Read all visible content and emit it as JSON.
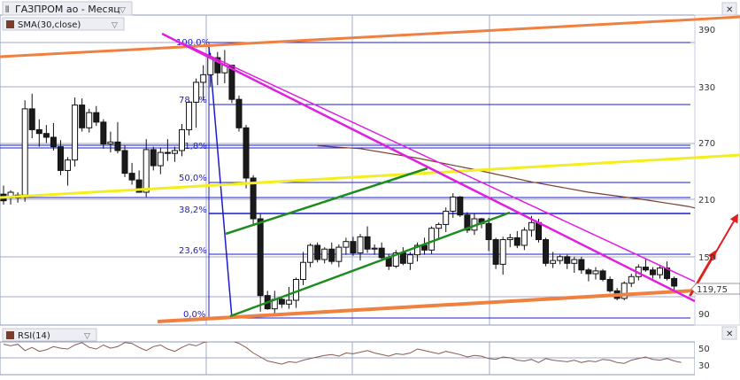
{
  "header": {
    "title": "ГАЗПРОМ ао - Месяц",
    "indicator_label": "SMA(30,close)",
    "close_symbol": "✕"
  },
  "price_axis": {
    "ticks": [
      "390",
      "330",
      "270",
      "210",
      "150",
      "90"
    ]
  },
  "fibonacci_levels": [
    "100,0%",
    "78,6%",
    "61,8%",
    "50,0%",
    "38,2%",
    "23,6%",
    "0,0%"
  ],
  "last_price": "119,75",
  "rsi": {
    "label": "RSI(14)",
    "ticks": [
      "50",
      "30"
    ]
  },
  "colors": {
    "candle_fill": "#1a1a1a",
    "grid": "#a0aac8",
    "sma": "#7a3e2a",
    "fib": "#1c1ccc",
    "channel_orange": "#f08040",
    "channel_yellow": "#f4ee20",
    "channel_green": "#1e8c1e",
    "trend_magenta": "#e020e0",
    "arrow": "#e02020",
    "rsi_line": "#8a5a52"
  },
  "chart_data": {
    "type": "candlestick",
    "title": "ГАЗПРОМ ао - Месяц",
    "ylim": [
      80,
      405
    ],
    "overlay": "SMA(30,close)",
    "candles": [
      {
        "o": 216,
        "h": 225,
        "l": 205,
        "c": 209
      },
      {
        "o": 212,
        "h": 220,
        "l": 205,
        "c": 218
      },
      {
        "o": 212,
        "h": 218,
        "l": 207,
        "c": 215
      },
      {
        "o": 215,
        "h": 315,
        "l": 208,
        "c": 306
      },
      {
        "o": 306,
        "h": 322,
        "l": 275,
        "c": 284
      },
      {
        "o": 284,
        "h": 295,
        "l": 266,
        "c": 280
      },
      {
        "o": 280,
        "h": 289,
        "l": 270,
        "c": 276
      },
      {
        "o": 276,
        "h": 291,
        "l": 262,
        "c": 266
      },
      {
        "o": 266,
        "h": 273,
        "l": 236,
        "c": 241
      },
      {
        "o": 241,
        "h": 255,
        "l": 225,
        "c": 252
      },
      {
        "o": 252,
        "h": 318,
        "l": 245,
        "c": 310
      },
      {
        "o": 310,
        "h": 317,
        "l": 282,
        "c": 286
      },
      {
        "o": 286,
        "h": 306,
        "l": 281,
        "c": 302
      },
      {
        "o": 302,
        "h": 309,
        "l": 288,
        "c": 292
      },
      {
        "o": 292,
        "h": 295,
        "l": 264,
        "c": 269
      },
      {
        "o": 269,
        "h": 282,
        "l": 260,
        "c": 271
      },
      {
        "o": 271,
        "h": 292,
        "l": 259,
        "c": 262
      },
      {
        "o": 262,
        "h": 268,
        "l": 234,
        "c": 238
      },
      {
        "o": 238,
        "h": 249,
        "l": 226,
        "c": 231
      },
      {
        "o": 231,
        "h": 241,
        "l": 220,
        "c": 218
      },
      {
        "o": 218,
        "h": 274,
        "l": 213,
        "c": 263
      },
      {
        "o": 263,
        "h": 266,
        "l": 241,
        "c": 246
      },
      {
        "o": 246,
        "h": 265,
        "l": 237,
        "c": 260
      },
      {
        "o": 260,
        "h": 274,
        "l": 251,
        "c": 259
      },
      {
        "o": 259,
        "h": 266,
        "l": 250,
        "c": 262
      },
      {
        "o": 262,
        "h": 290,
        "l": 256,
        "c": 284
      },
      {
        "o": 284,
        "h": 315,
        "l": 278,
        "c": 313
      },
      {
        "o": 313,
        "h": 338,
        "l": 286,
        "c": 334
      },
      {
        "o": 334,
        "h": 352,
        "l": 315,
        "c": 342
      },
      {
        "o": 342,
        "h": 365,
        "l": 329,
        "c": 360
      },
      {
        "o": 360,
        "h": 366,
        "l": 331,
        "c": 344
      },
      {
        "o": 344,
        "h": 368,
        "l": 333,
        "c": 352
      },
      {
        "o": 352,
        "h": 350,
        "l": 312,
        "c": 316
      },
      {
        "o": 316,
        "h": 320,
        "l": 282,
        "c": 286
      },
      {
        "o": 286,
        "h": 289,
        "l": 222,
        "c": 233
      },
      {
        "o": 233,
        "h": 236,
        "l": 183,
        "c": 190
      },
      {
        "o": 190,
        "h": 195,
        "l": 92,
        "c": 109
      },
      {
        "o": 109,
        "h": 114,
        "l": 94,
        "c": 95
      },
      {
        "o": 95,
        "h": 114,
        "l": 90,
        "c": 105
      },
      {
        "o": 105,
        "h": 108,
        "l": 96,
        "c": 100
      },
      {
        "o": 100,
        "h": 118,
        "l": 95,
        "c": 104
      },
      {
        "o": 104,
        "h": 128,
        "l": 96,
        "c": 126
      },
      {
        "o": 126,
        "h": 155,
        "l": 120,
        "c": 144
      },
      {
        "o": 144,
        "h": 164,
        "l": 139,
        "c": 162
      },
      {
        "o": 162,
        "h": 165,
        "l": 144,
        "c": 147
      },
      {
        "o": 147,
        "h": 160,
        "l": 143,
        "c": 158
      },
      {
        "o": 158,
        "h": 165,
        "l": 142,
        "c": 145
      },
      {
        "o": 145,
        "h": 163,
        "l": 139,
        "c": 160
      },
      {
        "o": 160,
        "h": 170,
        "l": 152,
        "c": 166
      },
      {
        "o": 166,
        "h": 171,
        "l": 151,
        "c": 154
      },
      {
        "o": 154,
        "h": 174,
        "l": 146,
        "c": 171
      },
      {
        "o": 171,
        "h": 182,
        "l": 154,
        "c": 158
      },
      {
        "o": 158,
        "h": 163,
        "l": 152,
        "c": 159
      },
      {
        "o": 159,
        "h": 165,
        "l": 146,
        "c": 149
      },
      {
        "o": 149,
        "h": 153,
        "l": 136,
        "c": 140
      },
      {
        "o": 140,
        "h": 157,
        "l": 138,
        "c": 154
      },
      {
        "o": 154,
        "h": 160,
        "l": 141,
        "c": 143
      },
      {
        "o": 143,
        "h": 155,
        "l": 136,
        "c": 152
      },
      {
        "o": 152,
        "h": 165,
        "l": 145,
        "c": 162
      },
      {
        "o": 162,
        "h": 170,
        "l": 152,
        "c": 157
      },
      {
        "o": 157,
        "h": 182,
        "l": 153,
        "c": 180
      },
      {
        "o": 180,
        "h": 186,
        "l": 168,
        "c": 184
      },
      {
        "o": 184,
        "h": 202,
        "l": 176,
        "c": 198
      },
      {
        "o": 198,
        "h": 217,
        "l": 191,
        "c": 213
      },
      {
        "o": 213,
        "h": 214,
        "l": 192,
        "c": 194
      },
      {
        "o": 194,
        "h": 197,
        "l": 175,
        "c": 178
      },
      {
        "o": 178,
        "h": 196,
        "l": 173,
        "c": 190
      },
      {
        "o": 190,
        "h": 191,
        "l": 180,
        "c": 185
      },
      {
        "o": 185,
        "h": 191,
        "l": 156,
        "c": 168
      },
      {
        "o": 168,
        "h": 170,
        "l": 137,
        "c": 142
      },
      {
        "o": 142,
        "h": 171,
        "l": 131,
        "c": 168
      },
      {
        "o": 168,
        "h": 174,
        "l": 160,
        "c": 170
      },
      {
        "o": 170,
        "h": 177,
        "l": 159,
        "c": 162
      },
      {
        "o": 162,
        "h": 181,
        "l": 157,
        "c": 178
      },
      {
        "o": 178,
        "h": 193,
        "l": 171,
        "c": 186
      },
      {
        "o": 186,
        "h": 190,
        "l": 165,
        "c": 168
      },
      {
        "o": 168,
        "h": 170,
        "l": 140,
        "c": 143
      },
      {
        "o": 143,
        "h": 155,
        "l": 138,
        "c": 146
      },
      {
        "o": 146,
        "h": 152,
        "l": 142,
        "c": 150
      },
      {
        "o": 150,
        "h": 152,
        "l": 137,
        "c": 143
      },
      {
        "o": 143,
        "h": 150,
        "l": 133,
        "c": 147
      },
      {
        "o": 147,
        "h": 150,
        "l": 132,
        "c": 136
      },
      {
        "o": 136,
        "h": 138,
        "l": 124,
        "c": 132
      },
      {
        "o": 132,
        "h": 139,
        "l": 126,
        "c": 135
      },
      {
        "o": 135,
        "h": 137,
        "l": 124,
        "c": 126
      },
      {
        "o": 126,
        "h": 129,
        "l": 112,
        "c": 114
      },
      {
        "o": 114,
        "h": 117,
        "l": 104,
        "c": 106
      },
      {
        "o": 106,
        "h": 124,
        "l": 104,
        "c": 122
      },
      {
        "o": 122,
        "h": 132,
        "l": 118,
        "c": 129
      },
      {
        "o": 129,
        "h": 142,
        "l": 125,
        "c": 139
      },
      {
        "o": 139,
        "h": 148,
        "l": 134,
        "c": 136
      },
      {
        "o": 136,
        "h": 139,
        "l": 127,
        "c": 131
      },
      {
        "o": 131,
        "h": 140,
        "l": 127,
        "c": 138
      },
      {
        "o": 138,
        "h": 145,
        "l": 125,
        "c": 127
      },
      {
        "o": 127,
        "h": 129,
        "l": 114,
        "c": 119
      }
    ],
    "sma": [
      [
        44,
        267
      ],
      [
        50,
        264
      ],
      [
        58,
        254
      ],
      [
        66,
        242
      ],
      [
        74,
        229
      ],
      [
        82,
        218
      ],
      [
        90,
        210
      ],
      [
        96,
        203
      ],
      [
        101,
        194
      ],
      [
        107,
        183
      ],
      [
        113,
        176
      ],
      [
        119,
        170
      ],
      [
        124,
        162
      ],
      [
        129,
        155
      ],
      [
        134,
        147
      ],
      [
        138,
        143
      ],
      [
        140,
        138
      ],
      [
        141,
        139
      ]
    ],
    "fib_prices": [
      373,
      329,
      296,
      272,
      250,
      220,
      95
    ],
    "rsi_values": [
      56,
      54,
      56,
      48,
      52,
      47,
      49,
      53,
      51,
      50,
      55,
      58,
      52,
      50,
      55,
      51,
      53,
      58,
      57,
      52,
      48,
      53,
      55,
      50,
      47,
      52,
      56,
      54,
      58,
      60,
      62,
      62,
      60,
      57,
      52,
      45,
      40,
      35,
      33,
      31,
      34,
      33,
      36,
      38,
      40,
      42,
      43,
      41,
      45,
      44,
      46,
      48,
      45,
      43,
      41,
      44,
      43,
      45,
      50,
      48,
      46,
      44,
      47,
      45,
      43,
      40,
      42,
      41,
      38,
      37,
      40,
      39,
      36,
      35,
      37,
      33,
      38,
      36,
      35,
      34,
      36,
      33,
      35,
      34,
      37,
      36,
      33,
      32,
      36,
      38,
      40,
      37,
      36,
      38,
      35,
      33
    ]
  }
}
